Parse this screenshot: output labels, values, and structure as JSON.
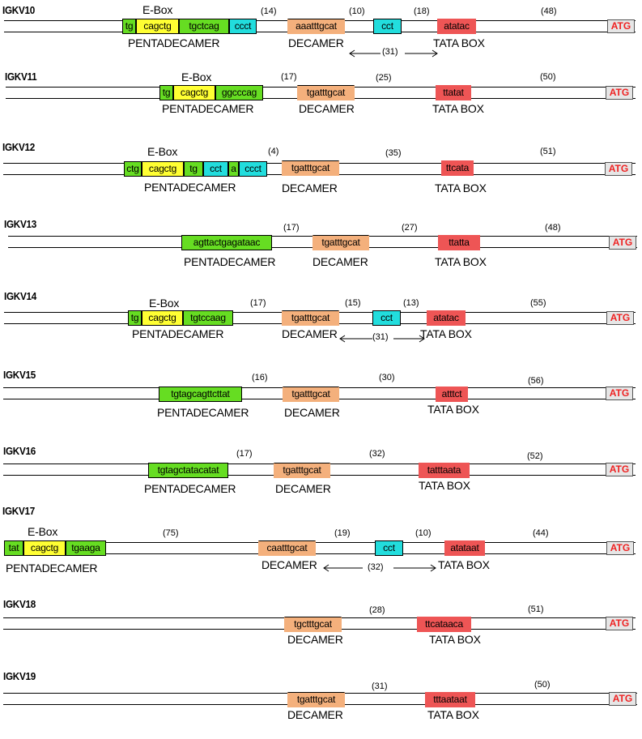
{
  "labels": {
    "ebox": "E-Box",
    "pentadecamer": "PENTADECAMER",
    "decamer": "DECAMER",
    "tata": "TATA BOX",
    "atg": "ATG"
  },
  "rows": [
    {
      "gene": "IGKV10",
      "segments": [
        {
          "text": "tg",
          "color": "green"
        },
        {
          "text": "cagctg",
          "color": "yellow"
        },
        {
          "text": "tgctcag",
          "color": "green"
        },
        {
          "text": "ccct",
          "color": "cyan"
        },
        {
          "text": "aaatttgcat",
          "color": "orange"
        },
        {
          "text": "cct",
          "color": "cyan"
        },
        {
          "text": "atatac",
          "color": "red"
        }
      ],
      "numbers": [
        "(14)",
        "(10)",
        "(18)",
        "(48)",
        "(31)"
      ]
    },
    {
      "gene": "IGKV11",
      "segments": [
        {
          "text": "tg",
          "color": "green"
        },
        {
          "text": "cagctg",
          "color": "yellow"
        },
        {
          "text": "ggcccag",
          "color": "green"
        },
        {
          "text": "tgatttgcat",
          "color": "orange"
        },
        {
          "text": "ttatat",
          "color": "red"
        }
      ],
      "numbers": [
        "(17)",
        "(25)",
        "(50)"
      ]
    },
    {
      "gene": "IGKV12",
      "segments": [
        {
          "text": "ctg",
          "color": "green"
        },
        {
          "text": "cagctg",
          "color": "yellow"
        },
        {
          "text": "tg",
          "color": "green"
        },
        {
          "text": "cct",
          "color": "cyan"
        },
        {
          "text": "a",
          "color": "green"
        },
        {
          "text": "ccct",
          "color": "cyan"
        },
        {
          "text": "tgatttgcat",
          "color": "orange"
        },
        {
          "text": "ttcata",
          "color": "red"
        }
      ],
      "numbers": [
        "(4)",
        "(35)",
        "(51)"
      ]
    },
    {
      "gene": "IGKV13",
      "segments": [
        {
          "text": "agttactgagataac",
          "color": "green"
        },
        {
          "text": "tgatttgcat",
          "color": "orange"
        },
        {
          "text": "ttatta",
          "color": "red"
        }
      ],
      "numbers": [
        "(17)",
        "(27)",
        "(48)"
      ]
    },
    {
      "gene": "IGKV14",
      "segments": [
        {
          "text": "tg",
          "color": "green"
        },
        {
          "text": "cagctg",
          "color": "yellow"
        },
        {
          "text": "tgtccaag",
          "color": "green"
        },
        {
          "text": "tgatttgcat",
          "color": "orange"
        },
        {
          "text": "cct",
          "color": "cyan"
        },
        {
          "text": "atatac",
          "color": "red"
        }
      ],
      "numbers": [
        "(17)",
        "(15)",
        "(13)",
        "(55)",
        "(31)"
      ]
    },
    {
      "gene": "IGKV15",
      "segments": [
        {
          "text": "tgtagcagttcttat",
          "color": "green"
        },
        {
          "text": "tgatttgcat",
          "color": "orange"
        },
        {
          "text": "atttct",
          "color": "red"
        }
      ],
      "numbers": [
        "(16)",
        "(30)",
        "(56)"
      ]
    },
    {
      "gene": "IGKV16",
      "segments": [
        {
          "text": "tgtagctatacatat",
          "color": "green"
        },
        {
          "text": "tgatttgcat",
          "color": "orange"
        },
        {
          "text": "tatttaata",
          "color": "red"
        }
      ],
      "numbers": [
        "(17)",
        "(32)",
        "(52)"
      ]
    },
    {
      "gene": "IGKV17",
      "segments": [
        {
          "text": "tat",
          "color": "green"
        },
        {
          "text": "cagctg",
          "color": "yellow"
        },
        {
          "text": "tgaaga",
          "color": "green"
        },
        {
          "text": "caatttgcat",
          "color": "orange"
        },
        {
          "text": "cct",
          "color": "cyan"
        },
        {
          "text": "atataat",
          "color": "red"
        }
      ],
      "numbers": [
        "(75)",
        "(19)",
        "(10)",
        "(44)",
        "(32)"
      ]
    },
    {
      "gene": "IGKV18",
      "segments": [
        {
          "text": "tgctttgcat",
          "color": "orange"
        },
        {
          "text": "ttcataaca",
          "color": "red"
        }
      ],
      "numbers": [
        "(28)",
        "(51)"
      ]
    },
    {
      "gene": "IGKV19",
      "segments": [
        {
          "text": "tgatttgcat",
          "color": "orange"
        },
        {
          "text": "tttaataat",
          "color": "red"
        }
      ],
      "numbers": [
        "(31)",
        "(50)"
      ]
    }
  ]
}
